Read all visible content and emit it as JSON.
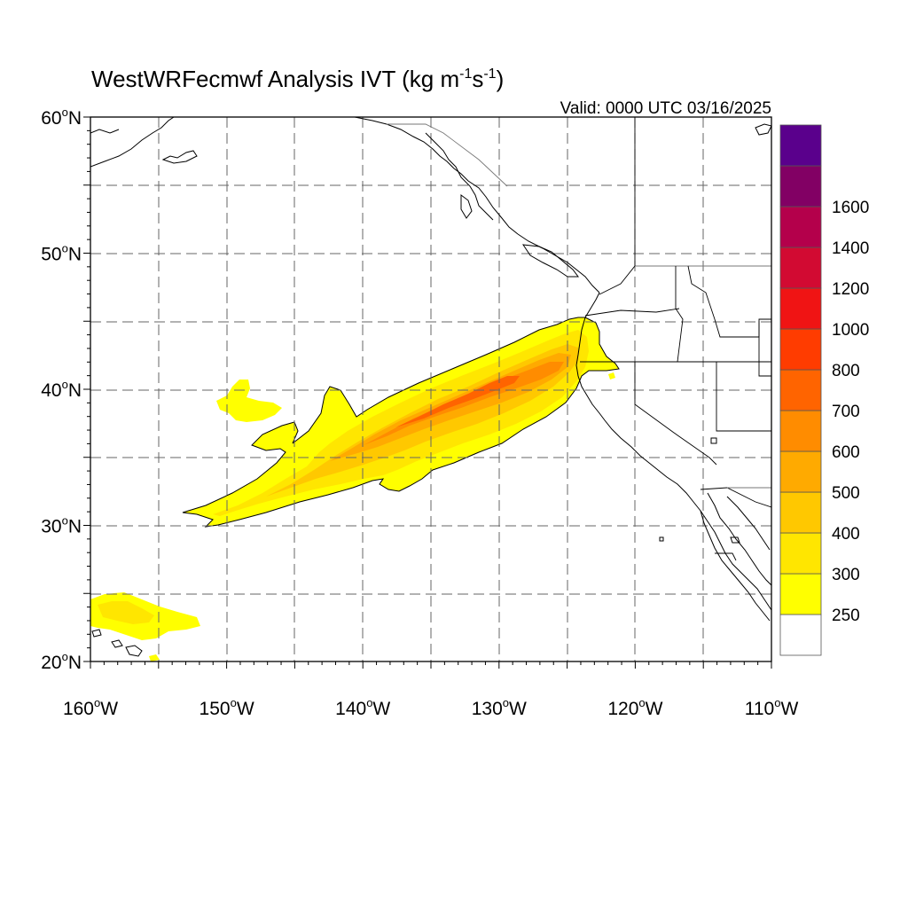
{
  "title": {
    "main": "WestWRFecmwf Analysis IVT (kg m",
    "sup1": "-1",
    "mid": "s",
    "sup2": "-1",
    "end": ")"
  },
  "valid": "Valid: 0000 UTC 03/16/2025",
  "axes": {
    "lat_ticks": [
      {
        "value": 60,
        "label": "60",
        "suffix": "N"
      },
      {
        "value": 50,
        "label": "50",
        "suffix": "N"
      },
      {
        "value": 40,
        "label": "40",
        "suffix": "N"
      },
      {
        "value": 30,
        "label": "30",
        "suffix": "N"
      },
      {
        "value": 20,
        "label": "20",
        "suffix": "N"
      }
    ],
    "lon_ticks": [
      {
        "value": -160,
        "label": "160",
        "suffix": "W"
      },
      {
        "value": -150,
        "label": "150",
        "suffix": "W"
      },
      {
        "value": -140,
        "label": "140",
        "suffix": "W"
      },
      {
        "value": -130,
        "label": "130",
        "suffix": "W"
      },
      {
        "value": -120,
        "label": "120",
        "suffix": "W"
      },
      {
        "value": -110,
        "label": "110",
        "suffix": "W"
      }
    ],
    "lon_range": [
      -160,
      -110
    ],
    "lat_range": [
      20,
      60
    ]
  },
  "colorbar": {
    "levels": [
      {
        "label": "250",
        "color": "#ffff00"
      },
      {
        "label": "300",
        "color": "#ffe600"
      },
      {
        "label": "400",
        "color": "#ffc800"
      },
      {
        "label": "500",
        "color": "#ffaa00"
      },
      {
        "label": "600",
        "color": "#ff8c00"
      },
      {
        "label": "700",
        "color": "#ff6400"
      },
      {
        "label": "800",
        "color": "#ff3c00"
      },
      {
        "label": "1000",
        "color": "#f01414"
      },
      {
        "label": "1200",
        "color": "#d20a32"
      },
      {
        "label": "1400",
        "color": "#b4004b"
      },
      {
        "label": "1600",
        "color": "#820064"
      }
    ],
    "top_color": "#5a008c",
    "bottom_color": "#ffffff"
  },
  "map": {
    "fill_colors": {
      "c250": "#ffff00",
      "c300": "#ffe600",
      "c400": "#ffc800",
      "c500": "#ffaa00",
      "c600": "#ff8c00",
      "c700": "#ff6400"
    }
  }
}
